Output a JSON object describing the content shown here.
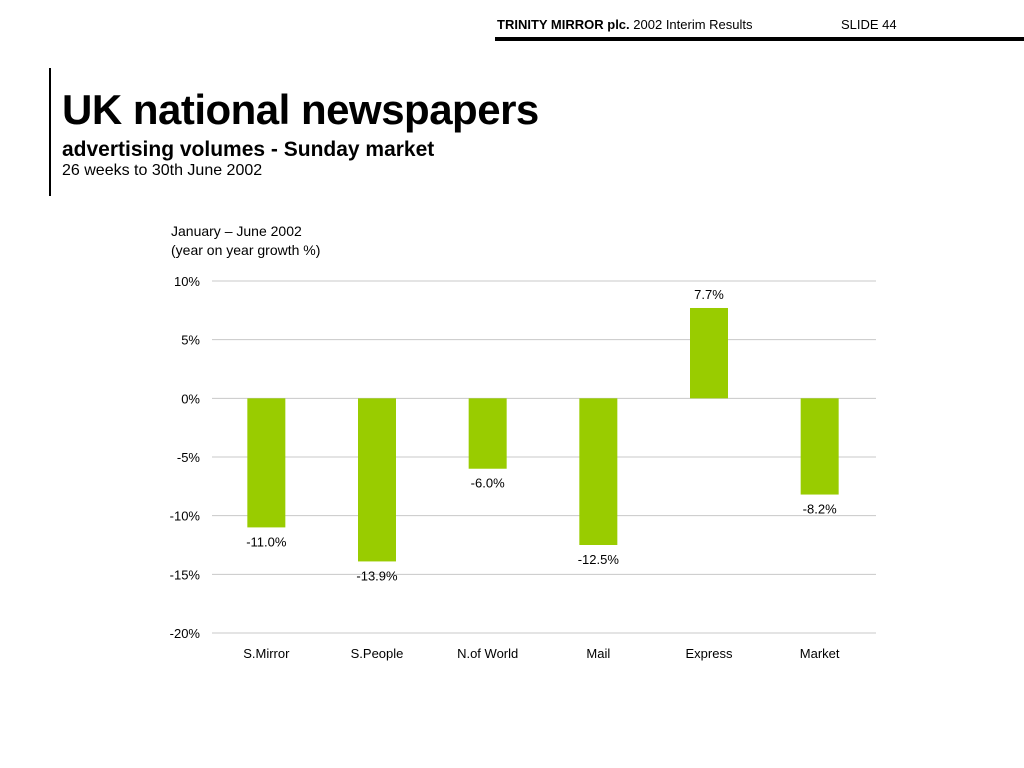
{
  "header": {
    "company": "TRINITY MIRROR plc.",
    "report": "2002 Interim Results",
    "slide": "SLIDE 44"
  },
  "title": "UK national newspapers",
  "subtitle": "advertising volumes - Sunday market",
  "period": "26 weeks to 30th June 2002",
  "chart_note": {
    "line1": "January – June 2002",
    "line2": "(year on year growth %)"
  },
  "colors": {
    "bar": "#99cc00",
    "grid": "#c8c8c8"
  },
  "chart_data": {
    "type": "bar",
    "categories": [
      "S.Mirror",
      "S.People",
      "N.of World",
      "Mail",
      "Express",
      "Market"
    ],
    "values": [
      -11.0,
      -13.9,
      -6.0,
      -12.5,
      7.7,
      -8.2
    ],
    "data_labels": [
      "-11.0%",
      "-13.9%",
      "-6.0%",
      "-12.5%",
      "7.7%",
      "-8.2%"
    ],
    "ylim": [
      -20,
      10
    ],
    "yticks": [
      10,
      5,
      0,
      -5,
      -10,
      -15,
      -20
    ],
    "ytick_labels": [
      "10%",
      "5%",
      "0%",
      "-5%",
      "-10%",
      "-15%",
      "-20%"
    ],
    "grid": true,
    "legend": "none"
  }
}
